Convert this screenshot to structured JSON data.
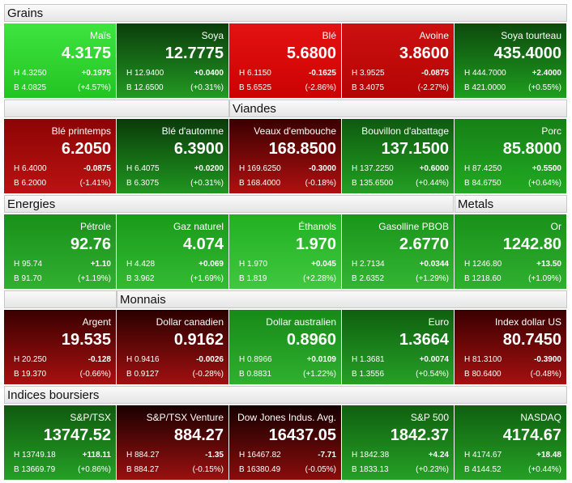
{
  "rows": [
    {
      "headers": [
        "Grains"
      ],
      "tiles": [
        {
          "name": "Maïs",
          "price": "4.3175",
          "high": "H 4.3250",
          "change": "+0.1975",
          "low": "B 4.0825",
          "pct": "(+4.57%)",
          "colors": [
            "#3fe43f",
            "#22c422"
          ]
        },
        {
          "name": "Soya",
          "price": "12.7775",
          "high": "H 12.9400",
          "change": "+0.0400",
          "low": "B 12.6500",
          "pct": "(+0.31%)",
          "colors": [
            "#0b3d0b",
            "#229a22"
          ]
        },
        {
          "name": "Blé",
          "price": "5.6800",
          "high": "H 6.1150",
          "change": "-0.1625",
          "low": "B 5.6525",
          "pct": "(-2.86%)",
          "colors": [
            "#e41212",
            "#cc0202"
          ]
        },
        {
          "name": "Avoine",
          "price": "3.8600",
          "high": "H 3.9525",
          "change": "-0.0875",
          "low": "B 3.4075",
          "pct": "(-2.27%)",
          "colors": [
            "#cc1010",
            "#b40404"
          ]
        },
        {
          "name": "Soya tourteau",
          "price": "435.4000",
          "high": "H 444.7000",
          "change": "+2.4000",
          "low": "B 421.0000",
          "pct": "(+0.55%)",
          "colors": [
            "#0d4a0d",
            "#1e9e1e"
          ]
        }
      ]
    },
    {
      "headers": [
        "Viandes"
      ],
      "tiles": [
        {
          "name": "Blé printemps",
          "price": "6.2050",
          "high": "H 6.4000",
          "change": "-0.0875",
          "low": "B 6.2000",
          "pct": "(-1.41%)",
          "colors": [
            "#8c0404",
            "#bb1212"
          ]
        },
        {
          "name": "Blé d'automne",
          "price": "6.3900",
          "high": "H 6.4075",
          "change": "+0.0200",
          "low": "B 6.3075",
          "pct": "(+0.31%)",
          "colors": [
            "#0a3a0a",
            "#1f961f"
          ]
        },
        {
          "name": "Veaux d'embouche",
          "price": "168.8500",
          "high": "H 169.6250",
          "change": "-0.3000",
          "low": "B 168.4000",
          "pct": "(-0.18%)",
          "colors": [
            "#3a0000",
            "#b01010"
          ]
        },
        {
          "name": "Bouvillon d'abattage",
          "price": "137.1500",
          "high": "H 137.2250",
          "change": "+0.6000",
          "low": "B 135.6500",
          "pct": "(+0.44%)",
          "colors": [
            "#0e5a0e",
            "#22a022"
          ]
        },
        {
          "name": "Porc",
          "price": "85.8000",
          "high": "H 87.4250",
          "change": "+0.5500",
          "low": "B 84.6750",
          "pct": "(+0.64%)",
          "colors": [
            "#168016",
            "#22aa22"
          ]
        }
      ]
    },
    {
      "headers": [
        "Energies",
        "Metals"
      ],
      "tiles": [
        {
          "name": "Pétrole",
          "price": "92.76",
          "high": "H 95.74",
          "change": "+1.10",
          "low": "B 91.70",
          "pct": "(+1.19%)",
          "colors": [
            "#1a901a",
            "#30b030"
          ]
        },
        {
          "name": "Gaz naturel",
          "price": "4.074",
          "high": "H 4.428",
          "change": "+0.069",
          "low": "B 3.962",
          "pct": "(+1.69%)",
          "colors": [
            "#1a9a1a",
            "#33bb33"
          ]
        },
        {
          "name": "Éthanols",
          "price": "1.970",
          "high": "H 1.970",
          "change": "+0.045",
          "low": "B 1.819",
          "pct": "(+2.28%)",
          "colors": [
            "#22b022",
            "#40c840"
          ]
        },
        {
          "name": "Gasolline PBOB",
          "price": "2.6770",
          "high": "H 2.7134",
          "change": "+0.0344",
          "low": "B 2.6352",
          "pct": "(+1.29%)",
          "colors": [
            "#1a951a",
            "#33b533"
          ]
        },
        {
          "name": "Or",
          "price": "1242.80",
          "high": "H 1246.80",
          "change": "+13.50",
          "low": "B 1218.60",
          "pct": "(+1.09%)",
          "colors": [
            "#1a901a",
            "#2fb02f"
          ]
        }
      ]
    },
    {
      "headers": [
        "Monnais"
      ],
      "tiles": [
        {
          "name": "Argent",
          "price": "19.535",
          "high": "H 20.250",
          "change": "-0.128",
          "low": "B 19.370",
          "pct": "(-0.66%)",
          "colors": [
            "#3a0000",
            "#a81010"
          ]
        },
        {
          "name": "Dollar canadien",
          "price": "0.9162",
          "high": "H 0.9416",
          "change": "-0.0026",
          "low": "B 0.9127",
          "pct": "(-0.28%)",
          "colors": [
            "#2a0000",
            "#a01010"
          ]
        },
        {
          "name": "Dollar australien",
          "price": "0.8960",
          "high": "H 0.8966",
          "change": "+0.0109",
          "low": "B 0.8831",
          "pct": "(+1.22%)",
          "colors": [
            "#178a17",
            "#2fb02f"
          ]
        },
        {
          "name": "Euro",
          "price": "1.3664",
          "high": "H 1.3681",
          "change": "+0.0074",
          "low": "B 1.3556",
          "pct": "(+0.54%)",
          "colors": [
            "#0f600f",
            "#26a026"
          ]
        },
        {
          "name": "Index dollar US",
          "price": "80.7450",
          "high": "H 81.3100",
          "change": "-0.3900",
          "low": "B 80.6400",
          "pct": "(-0.48%)",
          "colors": [
            "#3a0000",
            "#a51010"
          ]
        }
      ]
    },
    {
      "headers": [
        "Indices boursiers"
      ],
      "tiles": [
        {
          "name": "S&P/TSX",
          "price": "13747.52",
          "high": "H 13749.18",
          "change": "+118.11",
          "low": "B 13669.79",
          "pct": "(+0.86%)",
          "colors": [
            "#0f5a0f",
            "#25a025"
          ]
        },
        {
          "name": "S&P/TSX Venture",
          "price": "884.27",
          "high": "H 884.27",
          "change": "-1.35",
          "low": "B 884.27",
          "pct": "(-0.15%)",
          "colors": [
            "#1a0000",
            "#9a1010"
          ]
        },
        {
          "name": "Dow Jones Indus. Avg.",
          "price": "16437.05",
          "high": "H 16467.82",
          "change": "-7.71",
          "low": "B 16380.49",
          "pct": "(-0.05%)",
          "colors": [
            "#150000",
            "#8a0c0c"
          ]
        },
        {
          "name": "S&P 500",
          "price": "1842.37",
          "high": "H 1842.38",
          "change": "+4.24",
          "low": "B 1833.13",
          "pct": "(+0.23%)",
          "colors": [
            "#0f600f",
            "#26a026"
          ]
        },
        {
          "name": "NASDAQ",
          "price": "4174.67",
          "high": "H 4174.67",
          "change": "+18.48",
          "low": "B 4144.52",
          "pct": "(+0.44%)",
          "colors": [
            "#0f600f",
            "#26a026"
          ]
        }
      ]
    }
  ]
}
